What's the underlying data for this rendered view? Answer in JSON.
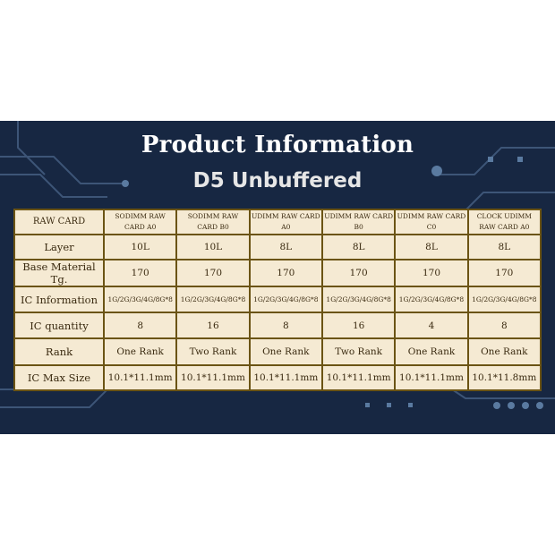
{
  "title": "Product Information",
  "subtitle": "D5 Unbuffered",
  "colors": {
    "background": "#172742",
    "cell": "#f5ead3",
    "border": "#6b5414"
  },
  "table": {
    "header": [
      "RAW CARD",
      "SODIMM RAW CARD A0",
      "SODIMM RAW CARD B0",
      "UDIMM RAW CARD A0",
      "UDIMM RAW CARD B0",
      "UDIMM RAW CARD C0",
      "CLOCK UDIMM RAW CARD A0"
    ],
    "rows": [
      [
        "Layer",
        "10L",
        "10L",
        "8L",
        "8L",
        "8L",
        "8L"
      ],
      [
        "Base Material Tg.",
        "170",
        "170",
        "170",
        "170",
        "170",
        "170"
      ],
      [
        "IC Information",
        "1G/2G/3G/4G/8G*8",
        "1G/2G/3G/4G/8G*8",
        "1G/2G/3G/4G/8G*8",
        "1G/2G/3G/4G/8G*8",
        "1G/2G/3G/4G/8G*8",
        "1G/2G/3G/4G/8G*8"
      ],
      [
        "IC quantity",
        "8",
        "16",
        "8",
        "16",
        "4",
        "8"
      ],
      [
        "Rank",
        "One Rank",
        "Two Rank",
        "One Rank",
        "Two Rank",
        "One Rank",
        "One Rank"
      ],
      [
        "IC Max Size",
        "10.1*11.1mm",
        "10.1*11.1mm",
        "10.1*11.1mm",
        "10.1*11.1mm",
        "10.1*11.1mm",
        "10.1*11.8mm"
      ]
    ]
  }
}
